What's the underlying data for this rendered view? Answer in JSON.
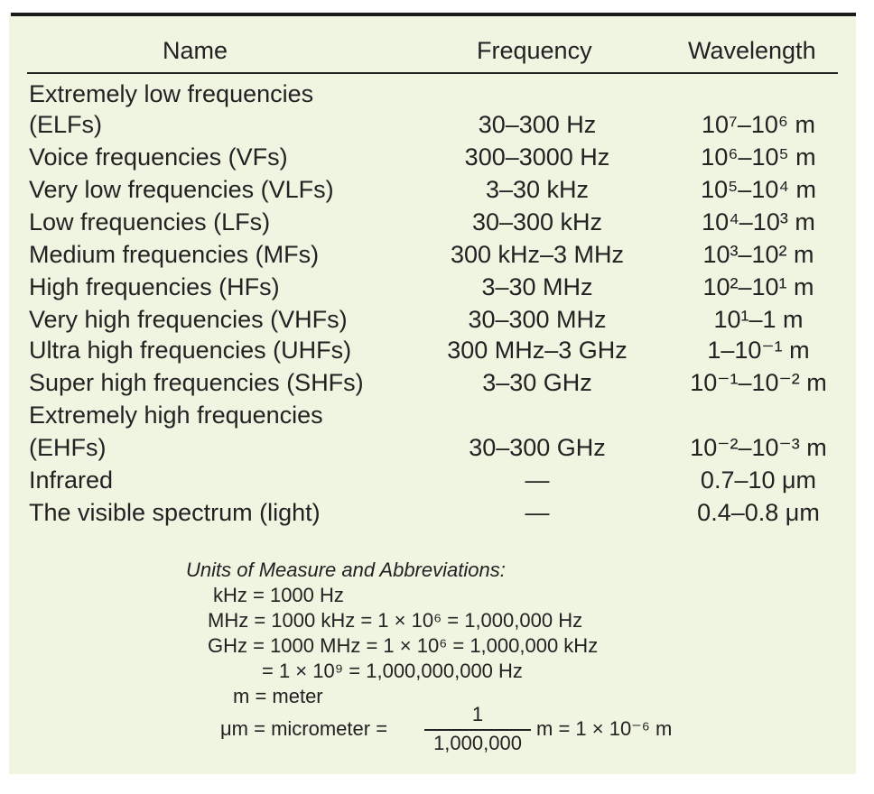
{
  "header": {
    "name": "Name",
    "frequency": "Frequency",
    "wavelength": "Wavelength"
  },
  "rows": [
    {
      "name": "Extremely low frequencies",
      "frequency": "",
      "wavelength": ""
    },
    {
      "name": "(ELFs)",
      "frequency": "30–300 Hz",
      "wavelength": "10⁷–10⁶ m"
    },
    {
      "name": "Voice frequencies (VFs)",
      "frequency": "300–3000 Hz",
      "wavelength": "10⁶–10⁵ m"
    },
    {
      "name": "Very low frequencies (VLFs)",
      "frequency": "3–30 kHz",
      "wavelength": "10⁵–10⁴ m"
    },
    {
      "name": "Low frequencies (LFs)",
      "frequency": "30–300 kHz",
      "wavelength": "10⁴–10³ m"
    },
    {
      "name": "Medium frequencies (MFs)",
      "frequency": "300 kHz–3 MHz",
      "wavelength": "10³–10² m"
    },
    {
      "name": "High frequencies (HFs)",
      "frequency": "3–30 MHz",
      "wavelength": "10²–10¹ m"
    },
    {
      "name": "Very high frequencies (VHFs)",
      "frequency": "30–300 MHz",
      "wavelength": "10¹–1 m"
    },
    {
      "name": "Ultra high frequencies (UHFs)",
      "frequency": "300 MHz–3 GHz",
      "wavelength": "1–10⁻¹ m"
    },
    {
      "name": "Super high frequencies (SHFs)",
      "frequency": "3–30 GHz",
      "wavelength": "10⁻¹–10⁻² m"
    },
    {
      "name": "Extremely high frequencies",
      "frequency": "",
      "wavelength": ""
    },
    {
      "name": "(EHFs)",
      "frequency": "30–300 GHz",
      "wavelength": "10⁻²–10⁻³ m"
    },
    {
      "name": "Infrared",
      "frequency": "—",
      "wavelength": "0.7–10 μm"
    },
    {
      "name": "The visible spectrum (light)",
      "frequency": "—",
      "wavelength": "0.4–0.8 μm"
    }
  ],
  "units": {
    "title": "Units of Measure and Abbreviations:",
    "khz": "kHz = 1000 Hz",
    "mhz": "MHz = 1000 kHz = 1 × 10⁶ = 1,000,000 Hz",
    "ghz": "GHz = 1000 MHz = 1 × 10⁶ = 1,000,000 kHz",
    "ghz_cont": "= 1 × 10⁹ = 1,000,000,000 Hz",
    "m": "m = meter",
    "um_lhs": "μm = micrometer =",
    "um_num": "1",
    "um_den": "1,000,000",
    "um_rhs": "m = 1 × 10⁻⁶ m"
  }
}
